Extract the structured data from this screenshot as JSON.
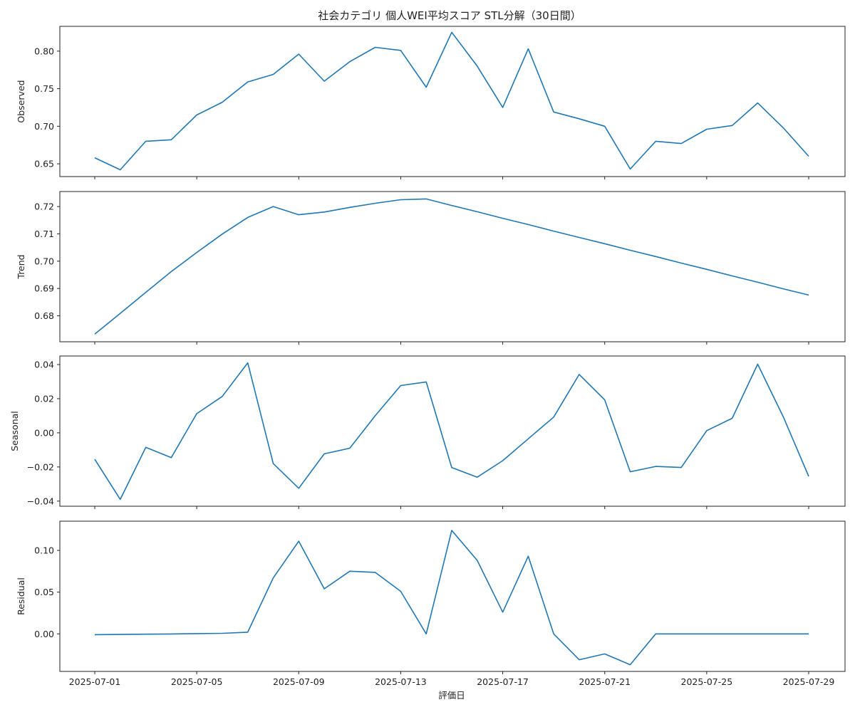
{
  "chart_data": {
    "type": "line",
    "title": "社会カテゴリ 個人WEI平均スコア STL分解（30日間）",
    "xlabel": "評価日",
    "x": [
      "2025-07-01",
      "2025-07-02",
      "2025-07-03",
      "2025-07-04",
      "2025-07-05",
      "2025-07-06",
      "2025-07-07",
      "2025-07-08",
      "2025-07-09",
      "2025-07-10",
      "2025-07-11",
      "2025-07-12",
      "2025-07-13",
      "2025-07-14",
      "2025-07-15",
      "2025-07-16",
      "2025-07-17",
      "2025-07-18",
      "2025-07-19",
      "2025-07-20",
      "2025-07-21",
      "2025-07-22",
      "2025-07-23",
      "2025-07-24",
      "2025-07-25",
      "2025-07-26",
      "2025-07-27",
      "2025-07-28",
      "2025-07-29"
    ],
    "x_ticks": [
      "2025-07-01",
      "2025-07-05",
      "2025-07-09",
      "2025-07-13",
      "2025-07-17",
      "2025-07-21",
      "2025-07-25",
      "2025-07-29"
    ],
    "line_color": "#1f77b4",
    "grid": false,
    "panels": [
      {
        "ylabel": "Observed",
        "ylim": [
          0.633,
          0.833
        ],
        "yticks": [
          0.65,
          0.7,
          0.75,
          0.8
        ],
        "ytick_labels": [
          "0.65",
          "0.70",
          "0.75",
          "0.80"
        ],
        "values": [
          0.658,
          0.642,
          0.68,
          0.682,
          0.715,
          0.732,
          0.759,
          0.769,
          0.796,
          0.76,
          0.786,
          0.805,
          0.801,
          0.752,
          0.825,
          0.78,
          0.725,
          0.803,
          0.719,
          0.71,
          0.7,
          0.643,
          0.68,
          0.677,
          0.696,
          0.701,
          0.731,
          0.698,
          0.66
        ]
      },
      {
        "ylabel": "Trend",
        "ylim": [
          0.6705,
          0.7255
        ],
        "yticks": [
          0.68,
          0.69,
          0.7,
          0.71,
          0.72
        ],
        "ytick_labels": [
          "0.68",
          "0.69",
          "0.70",
          "0.71",
          "0.72"
        ],
        "values": [
          0.6733,
          0.6809,
          0.6886,
          0.6962,
          0.7032,
          0.7099,
          0.716,
          0.72,
          0.717,
          0.718,
          0.7197,
          0.7212,
          0.7225,
          0.7228,
          0.7204,
          0.7181,
          0.7157,
          0.7134,
          0.711,
          0.7087,
          0.7064,
          0.704,
          0.7017,
          0.6993,
          0.697,
          0.6946,
          0.6923,
          0.6899,
          0.6876
        ]
      },
      {
        "ylabel": "Seasonal",
        "ylim": [
          -0.043,
          0.045
        ],
        "yticks": [
          -0.04,
          -0.02,
          0.0,
          0.02,
          0.04
        ],
        "ytick_labels": [
          "−0.04",
          "−0.02",
          "0.00",
          "0.02",
          "0.04"
        ],
        "values": [
          -0.0155,
          -0.039,
          -0.0085,
          -0.0145,
          0.0112,
          0.0213,
          0.041,
          -0.018,
          -0.0325,
          -0.0123,
          -0.009,
          0.01,
          0.0277,
          0.0298,
          -0.0203,
          -0.026,
          -0.0163,
          -0.0035,
          0.0092,
          0.0342,
          0.0193,
          -0.0228,
          -0.0197,
          -0.0203,
          0.0013,
          0.0085,
          0.0402,
          0.0095,
          -0.0255
        ]
      },
      {
        "ylabel": "Residual",
        "ylim": [
          -0.045,
          0.135
        ],
        "yticks": [
          0.0,
          0.05,
          0.1
        ],
        "ytick_labels": [
          "0.00",
          "0.05",
          "0.10"
        ],
        "values": [
          -0.001,
          -0.0007,
          -0.0004,
          -0.0001,
          0.0003,
          0.0006,
          0.002,
          0.067,
          0.111,
          0.054,
          0.075,
          0.0737,
          0.051,
          0.0,
          0.124,
          0.088,
          0.026,
          0.093,
          0.0,
          -0.031,
          -0.024,
          -0.037,
          0.0,
          0.0,
          0.0,
          0.0,
          0.0,
          0.0,
          0.0
        ]
      }
    ]
  }
}
